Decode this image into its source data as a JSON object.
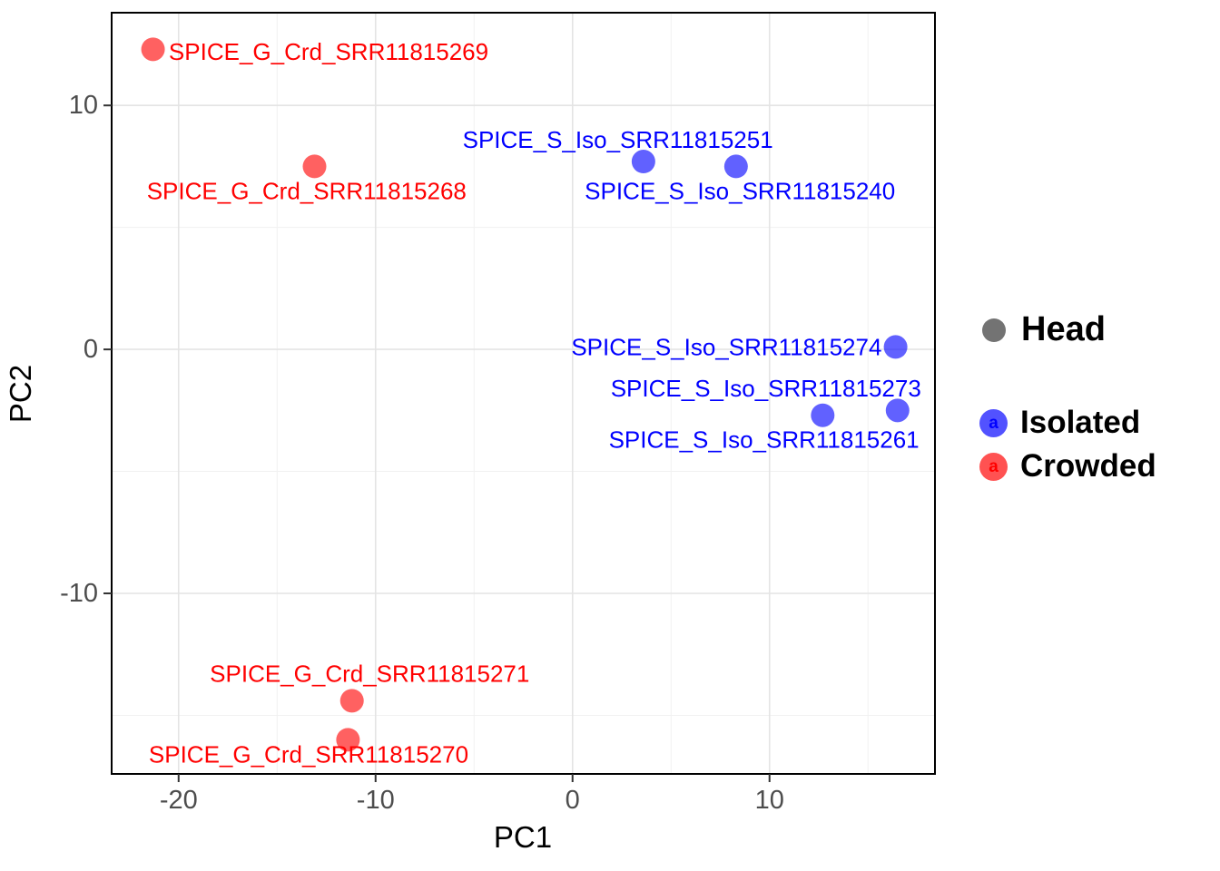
{
  "chart_data": {
    "type": "scatter",
    "title": "",
    "xlabel": "PC1",
    "ylabel": "PC2",
    "xlim": [
      -23.4,
      18.4
    ],
    "ylim": [
      -17.4,
      13.8
    ],
    "x_ticks": [
      -20,
      -10,
      0,
      10
    ],
    "y_ticks": [
      -10,
      0,
      10
    ],
    "x_minor_ticks": [
      -15,
      -5,
      5,
      15
    ],
    "y_minor_ticks": [
      -15,
      -5,
      5
    ],
    "grid": true,
    "point_radius": 13,
    "point_alpha": 0.62,
    "label_font_size": 26,
    "colors": {
      "panel_background": "#FFFFFF",
      "panel_border": "#000000",
      "grid_major": "#E4E4E4",
      "grid_minor": "#F1F1F1",
      "tick_mark": "#333333",
      "tick_label": "#4D4D4D",
      "axis_title": "#000000"
    },
    "series": [
      {
        "name": "Isolated",
        "color": "#0000FF",
        "points": [
          {
            "label": "SPICE_S_Iso_SRR11815251",
            "x": 3.6,
            "y": 7.7,
            "label_x": 2.3,
            "label_y": 8.6,
            "anchor": "middle"
          },
          {
            "label": "SPICE_S_Iso_SRR11815240",
            "x": 8.3,
            "y": 7.5,
            "label_x": 8.5,
            "label_y": 6.5,
            "anchor": "middle"
          },
          {
            "label": "SPICE_S_Iso_SRR11815274",
            "x": 16.4,
            "y": 0.1,
            "label_x": 15.7,
            "label_y": 0.1,
            "anchor": "end"
          },
          {
            "label": "SPICE_S_Iso_SRR11815273",
            "x": 16.5,
            "y": -2.5,
            "label_x": 17.7,
            "label_y": -1.6,
            "anchor": "end"
          },
          {
            "label": "SPICE_S_Iso_SRR11815261",
            "x": 12.7,
            "y": -2.7,
            "label_x": 17.6,
            "label_y": -3.7,
            "anchor": "end"
          }
        ]
      },
      {
        "name": "Crowded",
        "color": "#FF0000",
        "points": [
          {
            "label": "SPICE_G_Crd_SRR11815269",
            "x": -21.3,
            "y": 12.3,
            "label_x": -20.5,
            "label_y": 12.2,
            "anchor": "start"
          },
          {
            "label": "SPICE_G_Crd_SRR11815268",
            "x": -13.1,
            "y": 7.5,
            "label_x": -13.5,
            "label_y": 6.5,
            "anchor": "middle"
          },
          {
            "label": "SPICE_G_Crd_SRR11815271",
            "x": -11.2,
            "y": -14.4,
            "label_x": -10.3,
            "label_y": -13.3,
            "anchor": "middle"
          },
          {
            "label": "SPICE_G_Crd_SRR11815270",
            "x": -11.4,
            "y": -16.0,
            "label_x": -13.4,
            "label_y": -16.6,
            "anchor": "middle"
          }
        ]
      }
    ],
    "legend": {
      "head": {
        "label": "Head",
        "color": "#737373"
      },
      "entries": [
        {
          "label": "Isolated",
          "glyph": "a",
          "color": "#0000FF"
        },
        {
          "label": "Crowded",
          "glyph": "a",
          "color": "#FF0000"
        }
      ]
    }
  }
}
